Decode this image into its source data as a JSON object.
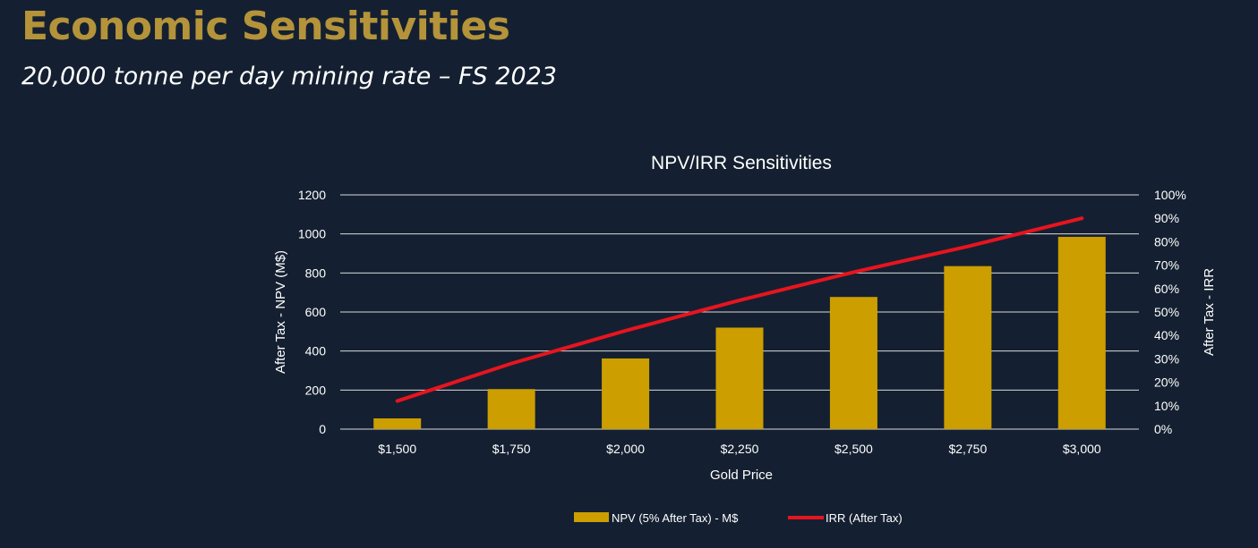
{
  "header": {
    "title": "Economic Sensitivities",
    "subtitle": "20,000 tonne per day mining rate – FS 2023"
  },
  "colors": {
    "background": "#142031",
    "title": "#b4933a",
    "bar": "#cc9e00",
    "line": "#e8141e",
    "grid": "#d9d9d9",
    "text": "#ffffff"
  },
  "chart_data": {
    "type": "bar",
    "title": "NPV/IRR Sensitivities",
    "xlabel": "Gold Price",
    "ylabel": "After Tax - NPV (M$)",
    "y2label": "After Tax - IRR",
    "categories": [
      "$1,500",
      "$1,750",
      "$2,000",
      "$2,250",
      "$2,500",
      "$2,750",
      "$3,000"
    ],
    "ylim": [
      0,
      1200
    ],
    "yticks": [
      "0",
      "200",
      "400",
      "600",
      "800",
      "1000",
      "1200"
    ],
    "y2lim": [
      0,
      100
    ],
    "y2ticks": [
      "0%",
      "10%",
      "20%",
      "30%",
      "40%",
      "50%",
      "60%",
      "70%",
      "80%",
      "90%",
      "100%"
    ],
    "grid": true,
    "legend_position": "bottom",
    "series": [
      {
        "name": "NPV (5% After Tax) - M$",
        "type": "bar",
        "axis": "left",
        "values": [
          55,
          205,
          362,
          520,
          677,
          835,
          985
        ]
      },
      {
        "name": "IRR (After Tax)",
        "type": "line",
        "axis": "right",
        "values": [
          12,
          28,
          42,
          55,
          67,
          78,
          90
        ]
      }
    ]
  }
}
